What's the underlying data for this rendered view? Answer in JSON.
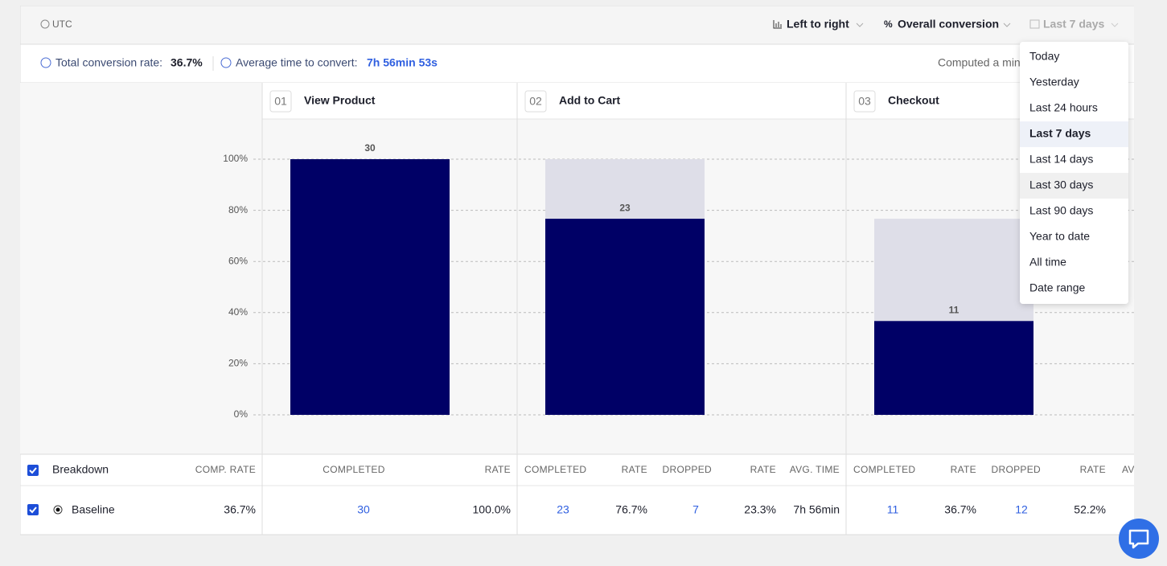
{
  "toolbar": {
    "timezone": "UTC",
    "controls": [
      "Left to right",
      "Overall conversion",
      "Last 7 days"
    ]
  },
  "summary": {
    "total_label": "Total conversion rate:",
    "total_value": "36.7%",
    "avg_label": "Average time to convert:",
    "avg_value": "7h 56min 53s",
    "computed": "Computed a min"
  },
  "chart_data": {
    "type": "bar",
    "step_numbers": [
      "01",
      "02",
      "03"
    ],
    "categories": [
      "View Product",
      "Add to Cart",
      "Checkout"
    ],
    "values": [
      100,
      76.7,
      36.7
    ],
    "previous_values": [
      null,
      100,
      76.7
    ],
    "counts": [
      30,
      23,
      11
    ],
    "color": "#000066",
    "previous_color": "#dedee8",
    "ylim": [
      0,
      100
    ],
    "yticks": [
      {
        "value": 0,
        "label": "0%"
      },
      {
        "value": 20,
        "label": "20%"
      },
      {
        "value": 40,
        "label": "40%"
      },
      {
        "value": 60,
        "label": "60%"
      },
      {
        "value": 80,
        "label": "80%"
      },
      {
        "value": 100,
        "label": "100%"
      }
    ],
    "grid": true
  },
  "table": {
    "header": [
      "Breakdown",
      "COMP. RATE",
      "COMPLETED",
      "RATE",
      "COMPLETED",
      "RATE",
      "DROPPED",
      "RATE",
      "AVG. TIME",
      "COMPLETED",
      "RATE",
      "DROPPED",
      "RATE",
      "AV"
    ],
    "rows": [
      [
        "Baseline",
        "36.7%",
        "30",
        "100.0%",
        "23",
        "76.7%",
        "7",
        "23.3%",
        "7h 56min",
        "11",
        "36.7%",
        "12",
        "52.2%"
      ]
    ]
  },
  "dropdown": {
    "options": [
      "Today",
      "Yesterday",
      "Last 24 hours",
      "Last 7 days",
      "Last 14 days",
      "Last 30 days",
      "Last 90 days",
      "Year to date",
      "All time",
      "Date range"
    ],
    "selected": 3
  }
}
